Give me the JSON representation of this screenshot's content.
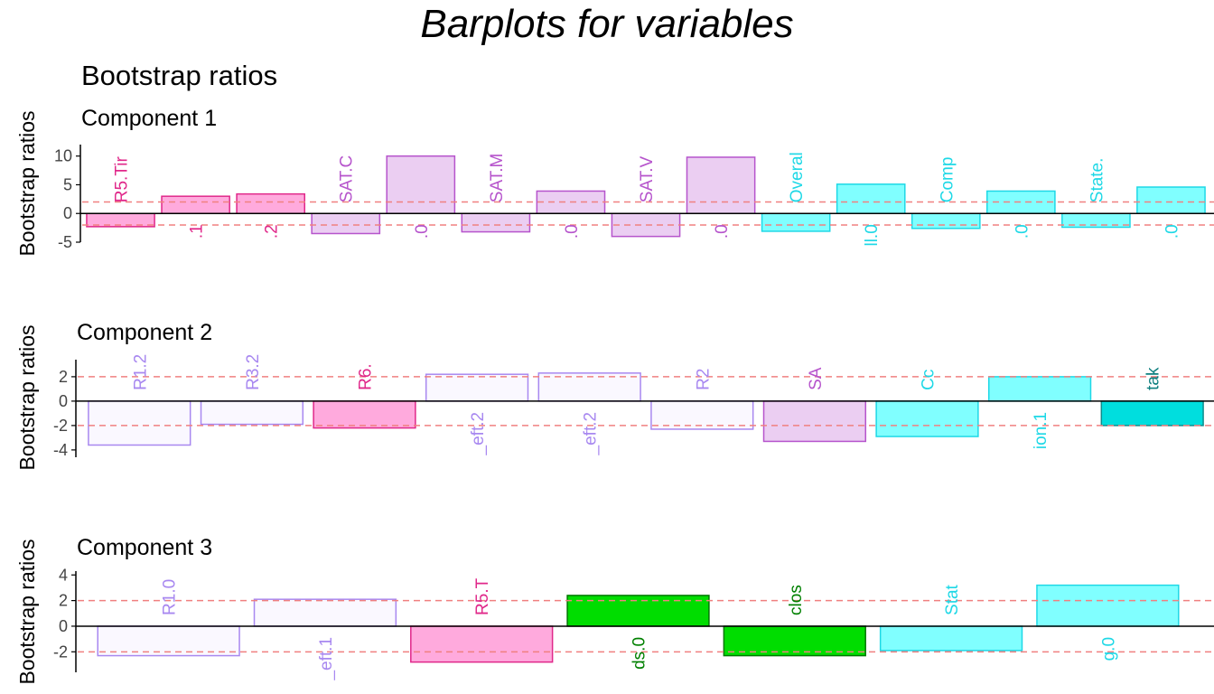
{
  "title": "Barplots for variables",
  "subtitle": "Bootstrap ratios",
  "chart_data": [
    {
      "type": "bar",
      "title": "Component 1",
      "ylabel": "Bootstrap ratios",
      "ylim": [
        -5,
        12
      ],
      "yticks": [
        -5,
        0,
        5,
        10
      ],
      "threshold": [
        2,
        -2
      ],
      "categories": [
        "R5.Tir",
        ".1",
        ".2",
        "SAT.C",
        ".0",
        "SAT.M",
        ".0",
        "SAT.V",
        ".0",
        "Overal",
        "ll.0",
        "Comp",
        ".0",
        "State.",
        ".0"
      ],
      "values": [
        -2.3,
        3.0,
        3.4,
        -3.5,
        10.0,
        -3.2,
        3.9,
        -4.0,
        9.8,
        -3.1,
        5.1,
        -2.6,
        3.9,
        -2.4,
        4.6
      ],
      "fills": [
        "#FFAADD",
        "#FFAADD",
        "#FFAADD",
        "#EBCEF2",
        "#EBCEF2",
        "#EBCEF2",
        "#EBCEF2",
        "#EBCEF2",
        "#EBCEF2",
        "#80FFFF",
        "#80FFFF",
        "#80FFFF",
        "#80FFFF",
        "#80FFFF",
        "#80FFFF"
      ],
      "strokes": [
        "#E0288A",
        "#E0288A",
        "#E0288A",
        "#B654CC",
        "#B654CC",
        "#B654CC",
        "#B654CC",
        "#B654CC",
        "#B654CC",
        "#1ED8E6",
        "#1ED8E6",
        "#1ED8E6",
        "#1ED8E6",
        "#1ED8E6",
        "#1ED8E6"
      ],
      "label_colors": [
        "#E0288A",
        "#E0288A",
        "#E0288A",
        "#B654CC",
        "#B654CC",
        "#B654CC",
        "#B654CC",
        "#B654CC",
        "#B654CC",
        "#1ED8E6",
        "#1ED8E6",
        "#1ED8E6",
        "#1ED8E6",
        "#1ED8E6",
        "#1ED8E6"
      ]
    },
    {
      "type": "bar",
      "title": "Component 2",
      "ylabel": "Bootstrap ratios",
      "ylim": [
        -4.6,
        3.4
      ],
      "yticks": [
        -4,
        -2,
        0,
        2
      ],
      "threshold": [
        2,
        -2
      ],
      "categories": [
        "R1.2",
        "R3.2",
        "R6.",
        "_eft.2",
        "_eft.2",
        "R2",
        "SA",
        "Cc",
        "ion.1",
        "tak"
      ],
      "values": [
        -3.6,
        -1.9,
        -2.2,
        2.2,
        2.3,
        -2.3,
        -3.3,
        -2.9,
        2.0,
        -2.0
      ],
      "fills": [
        "#FAF8FF",
        "#FAF8FF",
        "#FFAADD",
        "#FAF8FF",
        "#FAF8FF",
        "#FAF8FF",
        "#EBCEF2",
        "#80FFFF",
        "#80FFFF",
        "#00DEDE"
      ],
      "strokes": [
        "#A888F0",
        "#A888F0",
        "#E0288A",
        "#A888F0",
        "#A888F0",
        "#A888F0",
        "#B654CC",
        "#1ED8E6",
        "#1ED8E6",
        "#108C8C"
      ],
      "label_colors": [
        "#A888F0",
        "#A888F0",
        "#E0288A",
        "#A888F0",
        "#A888F0",
        "#A888F0",
        "#B654CC",
        "#1ED8E6",
        "#1ED8E6",
        "#0E7F7F"
      ]
    },
    {
      "type": "bar",
      "title": "Component 3",
      "ylabel": "Bootstrap ratios",
      "ylim": [
        -3.6,
        4.3
      ],
      "yticks": [
        -2,
        0,
        2,
        4
      ],
      "threshold": [
        2,
        -2
      ],
      "categories": [
        "R1.0",
        "_eft.1",
        "R5.T",
        "ds.0",
        "clos",
        "Stat",
        "g.0"
      ],
      "values": [
        -2.3,
        2.1,
        -2.8,
        2.4,
        -2.3,
        -1.9,
        3.2
      ],
      "fills": [
        "#FAF8FF",
        "#FAF8FF",
        "#FFAADD",
        "#00DD00",
        "#00DD00",
        "#80FFFF",
        "#80FFFF"
      ],
      "strokes": [
        "#A888F0",
        "#A888F0",
        "#E0288A",
        "#007700",
        "#007700",
        "#1ED8E6",
        "#1ED8E6"
      ],
      "label_colors": [
        "#A888F0",
        "#A888F0",
        "#E0288A",
        "#008000",
        "#008000",
        "#1ED8E6",
        "#1ED8E6"
      ]
    }
  ],
  "colors": {
    "threshold_line": "#F08080",
    "axis": "#000000",
    "background": "#FFFFFF"
  }
}
